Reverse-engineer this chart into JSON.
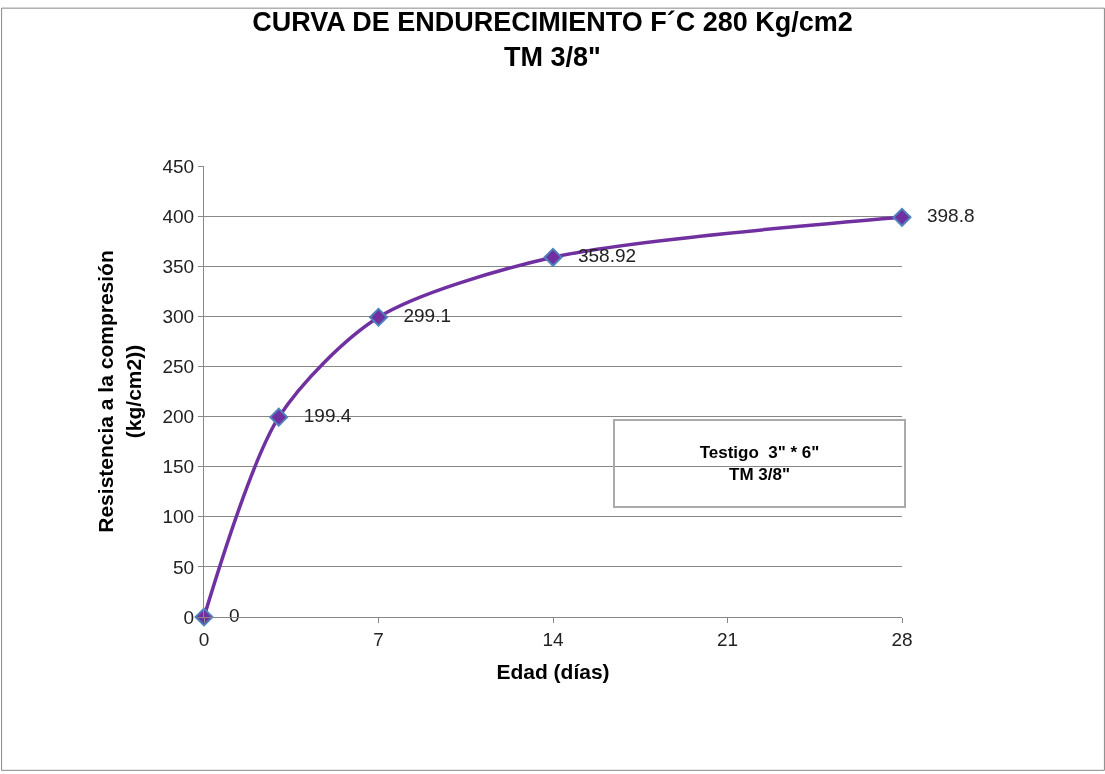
{
  "chart_data": {
    "type": "line",
    "title": "CURVA DE ENDURECIMIENTO F´C 280 Kg/cm2\nTM 3/8\"",
    "xlabel": "Edad (días)",
    "ylabel": "Resistencia a la compresión\n(kg/cm2))",
    "x": [
      0,
      3,
      7,
      14,
      28
    ],
    "series": [
      {
        "color": "#7030a0",
        "values": [
          0,
          199.4,
          299.1,
          358.92,
          398.8
        ]
      }
    ],
    "xlim": [
      0,
      28
    ],
    "xticks": [
      0,
      7,
      14,
      21,
      28
    ],
    "ylim": [
      0,
      450
    ],
    "yticks": [
      0,
      50,
      100,
      150,
      200,
      250,
      300,
      350,
      400,
      450
    ],
    "grid": "y",
    "marker": "diamond",
    "line_style": "solid",
    "data_labels": true,
    "legend": false,
    "annotations": [
      "Testigo  3\" * 6\"\nTM 3/8\""
    ]
  }
}
